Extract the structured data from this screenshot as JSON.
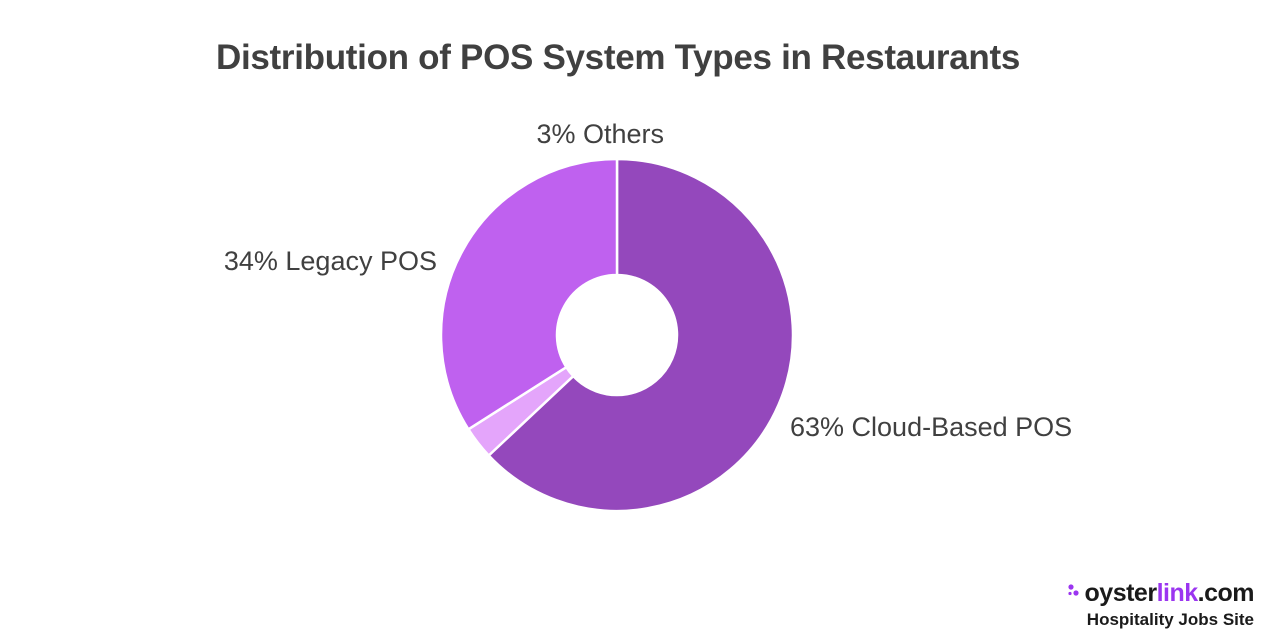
{
  "title": "Distribution of POS System Types in Restaurants",
  "chart_data": {
    "type": "pie",
    "title": "Distribution of POS System Types in Restaurants",
    "donut": true,
    "slices": [
      {
        "label": "63% Cloud-Based POS",
        "name": "Cloud-Based POS",
        "value": 63,
        "color": "#9448bc"
      },
      {
        "label": "3% Others",
        "name": "Others",
        "value": 3,
        "color": "#e4a5fb"
      },
      {
        "label": "34% Legacy POS",
        "name": "Legacy POS",
        "value": 34,
        "color": "#bf61ef"
      }
    ]
  },
  "brand": {
    "oyster": "oyster",
    "link": "link",
    "tld": ".com",
    "tagline": "Hospitality Jobs Site",
    "accent_color": "#9b35f0",
    "icon": "oysterlink-dots-icon"
  }
}
